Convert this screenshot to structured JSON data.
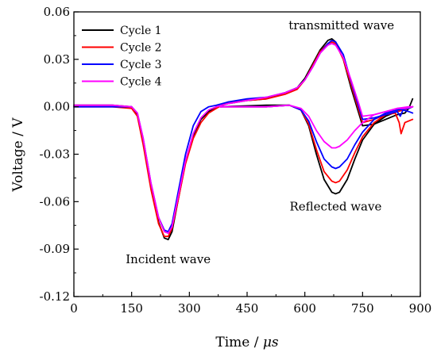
{
  "chart_data": {
    "type": "line",
    "xlabel": "Time / ",
    "xlabel_unit": "μs",
    "ylabel": "Voltage / V",
    "xlim": [
      0,
      900
    ],
    "ylim": [
      -0.12,
      0.06
    ],
    "xticks": [
      0,
      150,
      300,
      450,
      600,
      750,
      900
    ],
    "yticks": [
      -0.12,
      -0.09,
      -0.06,
      -0.03,
      0.0,
      0.03,
      0.06
    ],
    "ytick_labels": [
      "-0.12",
      "-0.09",
      "-0.06",
      "-0.03",
      "0.00",
      "0.03",
      "0.06"
    ],
    "grid": false,
    "legend_position": "top-left",
    "annotations": [
      {
        "text": "transmitted wave",
        "x": 695,
        "y": 0.049
      },
      {
        "text": "Reflected wave",
        "x": 680,
        "y": -0.0655
      },
      {
        "text": "Incident wave",
        "x": 245,
        "y": -0.099
      }
    ],
    "series": [
      {
        "name": "Cycle 1",
        "color": "#000000",
        "incident": [
          [
            0,
            0.001
          ],
          [
            100,
            0.001
          ],
          [
            150,
            0.0
          ],
          [
            165,
            -0.005
          ],
          [
            180,
            -0.022
          ],
          [
            200,
            -0.05
          ],
          [
            220,
            -0.073
          ],
          [
            235,
            -0.083
          ],
          [
            245,
            -0.084
          ],
          [
            255,
            -0.079
          ],
          [
            270,
            -0.06
          ],
          [
            290,
            -0.035
          ],
          [
            310,
            -0.018
          ],
          [
            330,
            -0.008
          ],
          [
            350,
            -0.003
          ],
          [
            370,
            0.0
          ],
          [
            400,
            0.002
          ],
          [
            450,
            0.004
          ],
          [
            500,
            0.005
          ],
          [
            550,
            0.009
          ],
          [
            580,
            0.012
          ],
          [
            600,
            0.018
          ],
          [
            620,
            0.027
          ],
          [
            640,
            0.036
          ],
          [
            660,
            0.042
          ],
          [
            670,
            0.043
          ],
          [
            680,
            0.041
          ],
          [
            700,
            0.03
          ],
          [
            720,
            0.012
          ],
          [
            740,
            -0.004
          ],
          [
            750,
            -0.012
          ],
          [
            780,
            -0.011
          ],
          [
            810,
            -0.008
          ],
          [
            840,
            -0.005
          ],
          [
            860,
            -0.004
          ],
          [
            870,
            -0.001
          ],
          [
            880,
            0.005
          ]
        ],
        "reflected": [
          [
            380,
            0.0
          ],
          [
            500,
            0.001
          ],
          [
            560,
            0.001
          ],
          [
            590,
            -0.002
          ],
          [
            610,
            -0.012
          ],
          [
            630,
            -0.03
          ],
          [
            650,
            -0.046
          ],
          [
            670,
            -0.054
          ],
          [
            680,
            -0.055
          ],
          [
            690,
            -0.054
          ],
          [
            710,
            -0.046
          ],
          [
            730,
            -0.033
          ],
          [
            750,
            -0.021
          ],
          [
            780,
            -0.011
          ],
          [
            810,
            -0.006
          ],
          [
            840,
            -0.003
          ],
          [
            870,
            -0.001
          ],
          [
            880,
            0.0
          ]
        ]
      },
      {
        "name": "Cycle 2",
        "color": "#ff0000",
        "incident": [
          [
            0,
            0.0
          ],
          [
            100,
            0.0
          ],
          [
            150,
            -0.001
          ],
          [
            165,
            -0.006
          ],
          [
            180,
            -0.024
          ],
          [
            200,
            -0.052
          ],
          [
            220,
            -0.074
          ],
          [
            235,
            -0.082
          ],
          [
            245,
            -0.082
          ],
          [
            255,
            -0.077
          ],
          [
            270,
            -0.06
          ],
          [
            290,
            -0.036
          ],
          [
            310,
            -0.02
          ],
          [
            330,
            -0.01
          ],
          [
            350,
            -0.004
          ],
          [
            370,
            -0.001
          ],
          [
            400,
            0.003
          ],
          [
            450,
            0.004
          ],
          [
            500,
            0.005
          ],
          [
            550,
            0.008
          ],
          [
            580,
            0.011
          ],
          [
            600,
            0.017
          ],
          [
            620,
            0.026
          ],
          [
            640,
            0.035
          ],
          [
            660,
            0.04
          ],
          [
            670,
            0.041
          ],
          [
            680,
            0.04
          ],
          [
            700,
            0.03
          ],
          [
            720,
            0.014
          ],
          [
            740,
            -0.002
          ],
          [
            750,
            -0.01
          ],
          [
            780,
            -0.008
          ],
          [
            810,
            -0.005
          ],
          [
            835,
            -0.004
          ],
          [
            845,
            -0.01
          ],
          [
            850,
            -0.017
          ],
          [
            860,
            -0.01
          ],
          [
            880,
            -0.008
          ]
        ],
        "reflected": [
          [
            380,
            0.0
          ],
          [
            500,
            0.0
          ],
          [
            560,
            0.001
          ],
          [
            590,
            -0.002
          ],
          [
            610,
            -0.011
          ],
          [
            630,
            -0.027
          ],
          [
            650,
            -0.041
          ],
          [
            670,
            -0.047
          ],
          [
            680,
            -0.048
          ],
          [
            690,
            -0.047
          ],
          [
            710,
            -0.04
          ],
          [
            730,
            -0.029
          ],
          [
            750,
            -0.019
          ],
          [
            780,
            -0.01
          ],
          [
            810,
            -0.005
          ],
          [
            840,
            -0.003
          ],
          [
            870,
            -0.001
          ],
          [
            880,
            0.0
          ]
        ]
      },
      {
        "name": "Cycle 3",
        "color": "#0000ff",
        "incident": [
          [
            0,
            0.0
          ],
          [
            100,
            0.0
          ],
          [
            150,
            0.0
          ],
          [
            165,
            -0.004
          ],
          [
            180,
            -0.02
          ],
          [
            200,
            -0.048
          ],
          [
            220,
            -0.07
          ],
          [
            235,
            -0.078
          ],
          [
            245,
            -0.079
          ],
          [
            255,
            -0.074
          ],
          [
            270,
            -0.055
          ],
          [
            290,
            -0.03
          ],
          [
            310,
            -0.012
          ],
          [
            330,
            -0.003
          ],
          [
            350,
            0.0
          ],
          [
            370,
            0.001
          ],
          [
            400,
            0.003
          ],
          [
            450,
            0.005
          ],
          [
            500,
            0.006
          ],
          [
            550,
            0.009
          ],
          [
            580,
            0.012
          ],
          [
            600,
            0.017
          ],
          [
            620,
            0.025
          ],
          [
            640,
            0.034
          ],
          [
            660,
            0.04
          ],
          [
            670,
            0.042
          ],
          [
            680,
            0.041
          ],
          [
            700,
            0.033
          ],
          [
            720,
            0.016
          ],
          [
            740,
            0.0
          ],
          [
            750,
            -0.008
          ],
          [
            780,
            -0.007
          ],
          [
            810,
            -0.005
          ],
          [
            840,
            -0.003
          ],
          [
            848,
            -0.006
          ],
          [
            855,
            -0.002
          ],
          [
            870,
            -0.003
          ],
          [
            880,
            -0.004
          ]
        ],
        "reflected": [
          [
            380,
            0.0
          ],
          [
            500,
            0.0
          ],
          [
            560,
            0.001
          ],
          [
            590,
            -0.002
          ],
          [
            610,
            -0.009
          ],
          [
            630,
            -0.022
          ],
          [
            650,
            -0.033
          ],
          [
            670,
            -0.038
          ],
          [
            680,
            -0.039
          ],
          [
            690,
            -0.038
          ],
          [
            710,
            -0.033
          ],
          [
            730,
            -0.024
          ],
          [
            750,
            -0.016
          ],
          [
            780,
            -0.008
          ],
          [
            810,
            -0.004
          ],
          [
            840,
            -0.002
          ],
          [
            870,
            -0.001
          ],
          [
            880,
            0.0
          ]
        ]
      },
      {
        "name": "Cycle 4",
        "color": "#ff00ff",
        "incident": [
          [
            0,
            0.001
          ],
          [
            100,
            0.001
          ],
          [
            150,
            0.0
          ],
          [
            165,
            -0.004
          ],
          [
            180,
            -0.02
          ],
          [
            200,
            -0.048
          ],
          [
            220,
            -0.07
          ],
          [
            235,
            -0.079
          ],
          [
            245,
            -0.08
          ],
          [
            255,
            -0.076
          ],
          [
            270,
            -0.058
          ],
          [
            290,
            -0.034
          ],
          [
            310,
            -0.017
          ],
          [
            330,
            -0.007
          ],
          [
            350,
            -0.002
          ],
          [
            370,
            0.0
          ],
          [
            400,
            0.002
          ],
          [
            450,
            0.004
          ],
          [
            500,
            0.006
          ],
          [
            550,
            0.009
          ],
          [
            580,
            0.012
          ],
          [
            600,
            0.017
          ],
          [
            620,
            0.025
          ],
          [
            640,
            0.034
          ],
          [
            660,
            0.039
          ],
          [
            670,
            0.04
          ],
          [
            680,
            0.039
          ],
          [
            700,
            0.031
          ],
          [
            720,
            0.017
          ],
          [
            740,
            0.002
          ],
          [
            750,
            -0.006
          ],
          [
            780,
            -0.005
          ],
          [
            810,
            -0.003
          ],
          [
            840,
            -0.001
          ],
          [
            860,
            -0.001
          ],
          [
            880,
            0.0
          ]
        ],
        "reflected": [
          [
            380,
            0.0
          ],
          [
            500,
            0.0
          ],
          [
            560,
            0.001
          ],
          [
            590,
            -0.001
          ],
          [
            610,
            -0.006
          ],
          [
            630,
            -0.015
          ],
          [
            650,
            -0.022
          ],
          [
            670,
            -0.026
          ],
          [
            680,
            -0.026
          ],
          [
            690,
            -0.025
          ],
          [
            710,
            -0.021
          ],
          [
            730,
            -0.015
          ],
          [
            750,
            -0.01
          ],
          [
            780,
            -0.005
          ],
          [
            810,
            -0.003
          ],
          [
            840,
            -0.001
          ],
          [
            870,
            0.0
          ],
          [
            880,
            0.0
          ]
        ]
      }
    ]
  }
}
